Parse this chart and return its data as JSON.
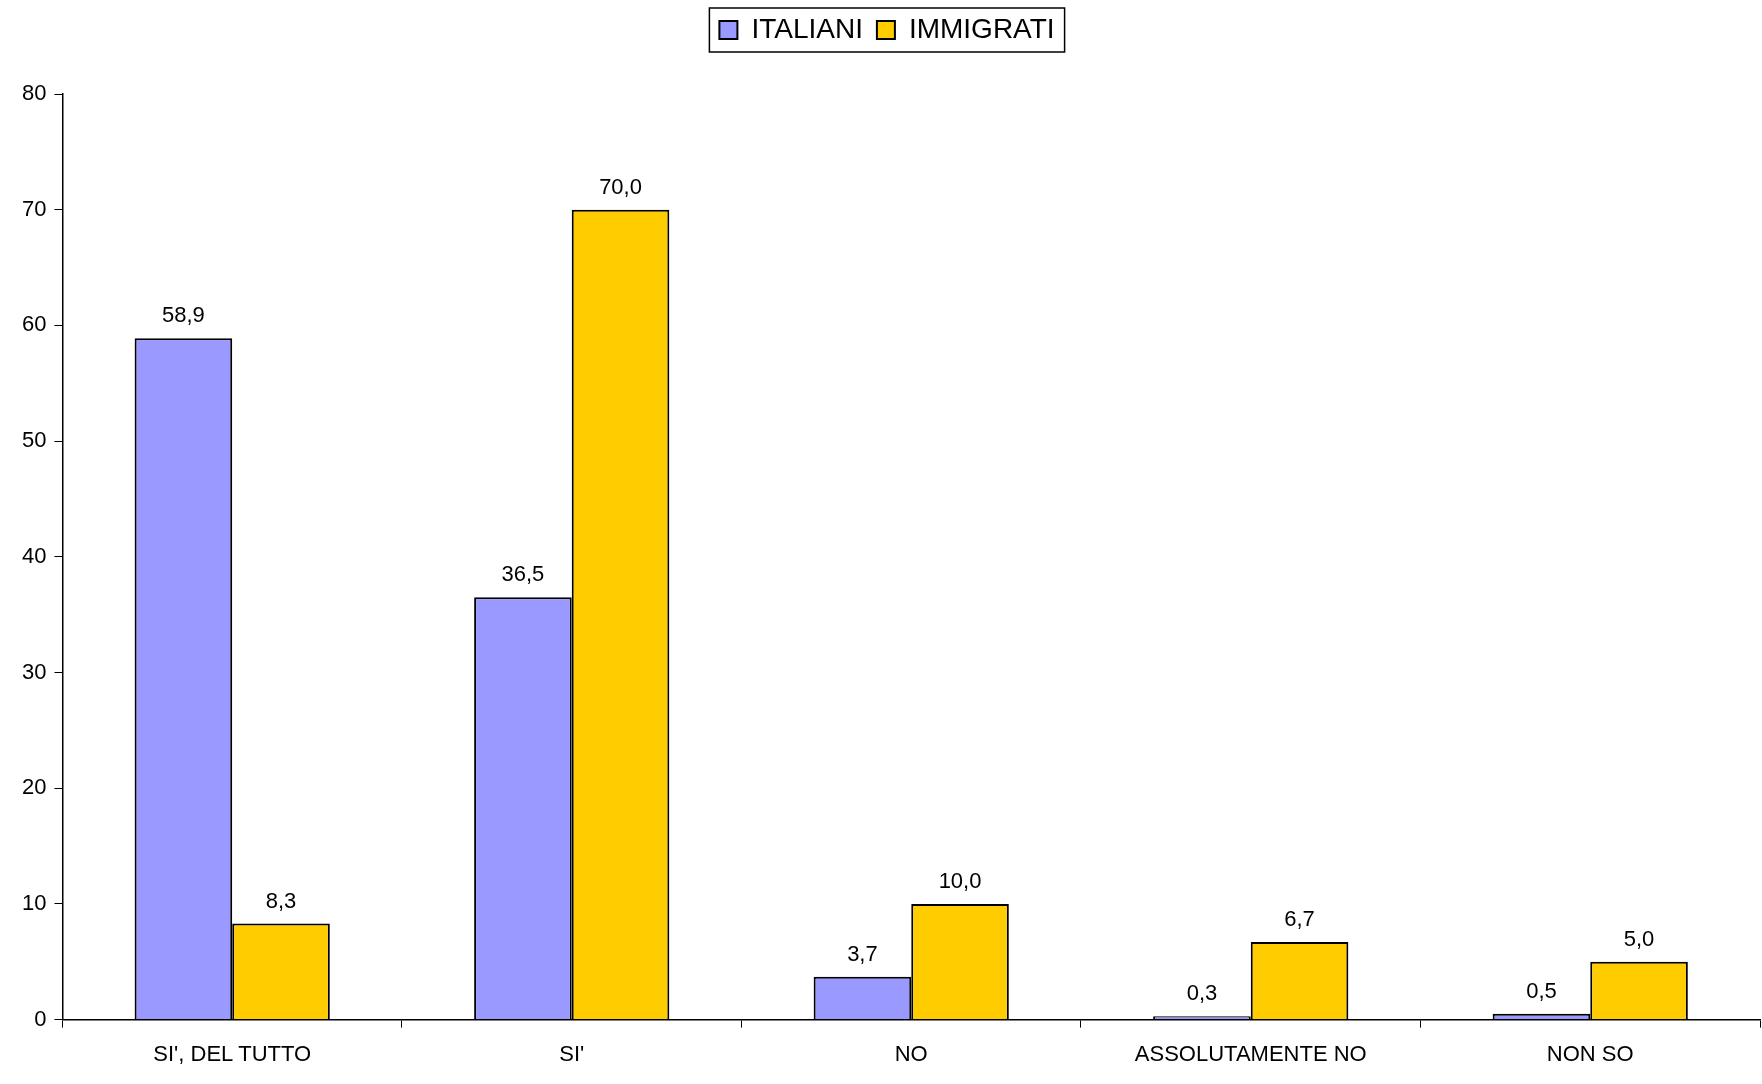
{
  "chart_data": {
    "type": "bar",
    "categories": [
      "SI', DEL TUTTO",
      "SI'",
      "NO",
      "ASSOLUTAMENTE NO",
      "NON SO"
    ],
    "series": [
      {
        "name": "ITALIANI",
        "color": "#9999ff",
        "values": [
          58.9,
          36.5,
          3.7,
          0.3,
          0.5
        ],
        "value_labels": [
          "58,9",
          "36,5",
          "3,7",
          "0,3",
          "0,5"
        ]
      },
      {
        "name": "IMMIGRATI",
        "color": "#ffcc00",
        "values": [
          8.3,
          70.0,
          10.0,
          6.7,
          5.0
        ],
        "value_labels": [
          "8,3",
          "70,0",
          "10,0",
          "6,7",
          "5,0"
        ]
      }
    ],
    "ylim": [
      0,
      80
    ],
    "yticks": [
      0,
      10,
      20,
      30,
      40,
      50,
      60,
      70,
      80
    ],
    "legend": "top"
  }
}
